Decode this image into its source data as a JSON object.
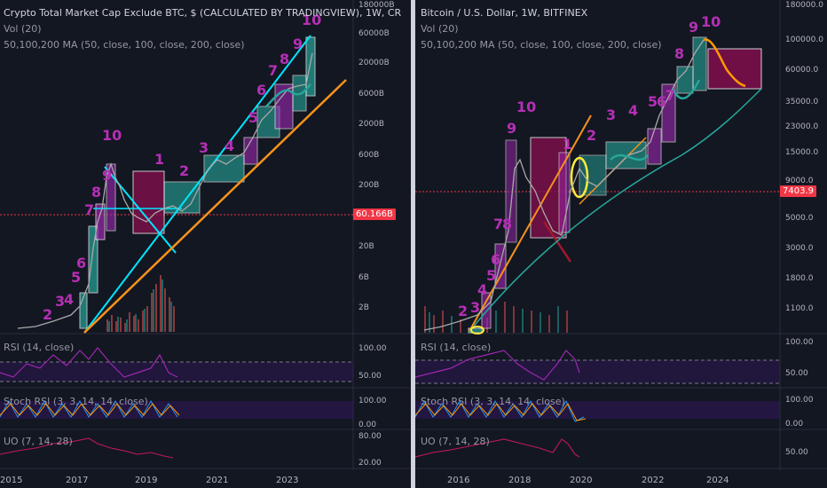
{
  "left": {
    "title": "Crypto Total Market Cap Exclude BTC, $ (CALCULATED BY TRADINGVIEW), 1W, CR",
    "vol": "Vol (20)",
    "ma": "50,100,200 MA (50, close, 100, close, 200, close)",
    "price_tag": "60.166B",
    "rsi_label": "RSI (14, close)",
    "stoch_label": "Stoch RSI (3, 3, 14, 14, close)",
    "uo_label": "UO (7, 14, 28)",
    "y_ticks": [
      "180000B",
      "60000B",
      "20000B",
      "6000B",
      "2000B",
      "600B",
      "200B",
      "20B",
      "6B",
      "2B"
    ],
    "rsi_ticks": [
      "100.00",
      "50.00"
    ],
    "stoch_ticks": [
      "100.00",
      "0.00"
    ],
    "uo_ticks": [
      "80.00",
      "20.00"
    ],
    "x_ticks": [
      "2015",
      "2017",
      "2019",
      "2021",
      "2023"
    ],
    "wave_labels": [
      "2",
      "3",
      "4",
      "5",
      "6",
      "7",
      "8",
      "9",
      "10",
      "1",
      "2",
      "3",
      "4",
      "5",
      "6",
      "7",
      "8",
      "9",
      "10"
    ]
  },
  "right": {
    "title": "Bitcoin / U.S. Dollar, 1W, BITFINEX",
    "vol": "Vol (20)",
    "ma": "50,100,200 MA (50, close, 100, close, 200, close)",
    "price_tag": "7403.9",
    "rsi_label": "RSI (14, close)",
    "stoch_label": "Stoch RSI (3, 3, 14, 14, close)",
    "uo_label": "UO (7, 14, 28)",
    "y_ticks": [
      "180000.0",
      "100000.0",
      "60000.0",
      "35000.0",
      "23000.0",
      "15000.0",
      "9000.0",
      "5000.0",
      "3000.0",
      "1800.0",
      "1100.0"
    ],
    "rsi_ticks": [
      "100.00",
      "50.00"
    ],
    "stoch_ticks": [
      "100.00",
      "0.00"
    ],
    "uo_ticks": [
      "50.00"
    ],
    "x_ticks": [
      "2016",
      "2018",
      "2020",
      "2022",
      "2024"
    ],
    "wave_labels": [
      "2",
      "3",
      "4",
      "5",
      "6",
      "7",
      "8",
      "9",
      "10",
      "1",
      "2",
      "3",
      "4",
      "5",
      "6",
      "7",
      "8",
      "9",
      "10"
    ]
  },
  "colors": {
    "background": "#131722",
    "wave_label": "#b62fb5",
    "cyan_line": "#00e5ff",
    "orange_line": "#f7931a",
    "ma_green": "#26a69a",
    "price_tag": "#f23645",
    "rsi_line": "#9c27b0",
    "uo_line": "#c2185b"
  },
  "chart_data": [
    {
      "type": "line",
      "title": "Crypto Total Market Cap Exclude BTC, $ (CALCULATED BY TRADINGVIEW), 1W, CR",
      "ylabel": "",
      "y_scale": "log",
      "x": [
        2015,
        2016,
        2017,
        2018,
        2019,
        2020,
        2021,
        2022,
        2023
      ],
      "series": [
        {
          "values": [
            0.8,
            1.2,
            5,
            350,
            65,
            60,
            500,
            1500,
            20000
          ]
        }
      ]
    },
    {
      "type": "line",
      "title": "Bitcoin / U.S. Dollar, 1W, BITFINEX",
      "ylabel": "",
      "y_scale": "log",
      "x": [
        2016,
        2017,
        2018,
        2019,
        2020,
        2021,
        2022,
        2023,
        2024
      ],
      "series": [
        {
          "values": [
            450,
            1000,
            14000,
            3500,
            7400,
            20000,
            40000,
            70000,
            90000
          ]
        }
      ]
    }
  ]
}
